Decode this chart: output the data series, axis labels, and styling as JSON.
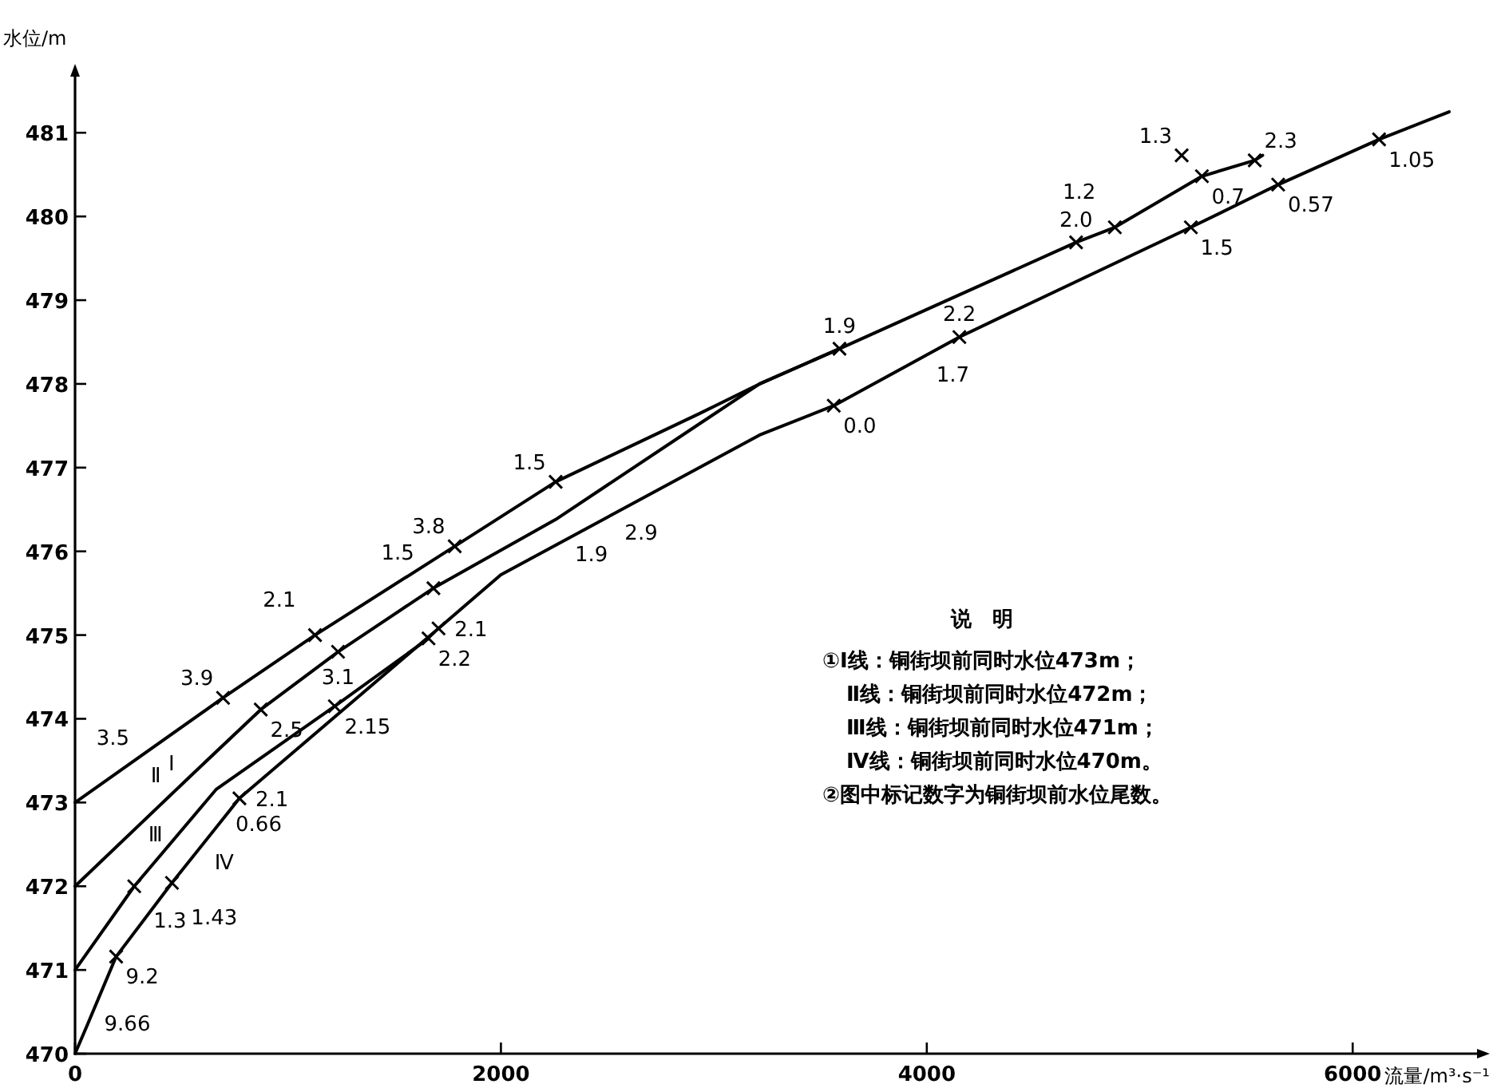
{
  "chart_data": {
    "type": "line",
    "xlabel": "流量/m³·s⁻¹",
    "ylabel": "水位/m",
    "xlim": [
      0,
      6584
    ],
    "ylim": [
      470,
      481.67
    ],
    "xticks": [
      0,
      2000,
      4000,
      6000
    ],
    "yticks": [
      470,
      471,
      472,
      473,
      474,
      475,
      476,
      477,
      478,
      479,
      480,
      481
    ],
    "grid": false,
    "series": [
      {
        "color": "#000000",
        "x": [
          0,
          695,
          1127,
          1783,
          2257,
          2936,
          3215,
          3590,
          4044,
          4701,
          4883,
          5292,
          5540,
          5577
        ],
        "values": [
          473.0,
          474.25,
          475.0,
          476.06,
          476.83,
          477.65,
          478.0,
          478.42,
          478.94,
          479.69,
          479.87,
          480.48,
          480.67,
          480.73
        ]
      },
      {
        "color": "#000000",
        "x": [
          0,
          548,
          872,
          1235,
          1683,
          2257,
          2936,
          3215,
          3590
        ],
        "values": [
          472.0,
          473.33,
          474.11,
          474.8,
          475.56,
          476.38,
          477.53,
          478.0,
          478.42
        ]
      },
      {
        "color": "#000000",
        "x": [
          0,
          278,
          664,
          1220,
          1660
        ],
        "values": [
          471.0,
          472.0,
          473.16,
          474.15,
          474.96
        ]
      },
      {
        "color": "#000000",
        "x": [
          0,
          62,
          193,
          455,
          772,
          1707,
          2000,
          3215,
          3563,
          4153,
          4409,
          5240,
          5650,
          6124,
          6453
        ],
        "values": [
          470.0,
          470.37,
          471.16,
          472.04,
          473.05,
          475.08,
          475.72,
          477.39,
          477.74,
          478.56,
          478.87,
          479.87,
          480.38,
          480.92,
          481.25
        ]
      },
      {
        "type": "scatter",
        "marker": "cross",
        "color": "#000000",
        "x": [
          695,
          1127,
          1783,
          2257,
          1660,
          4701,
          5197,
          5540,
          278,
          193,
          455,
          772,
          872,
          1235,
          1683,
          1220,
          1707,
          3590,
          3563,
          4153,
          4883,
          5292,
          5240,
          5650,
          6124
        ],
        "values": [
          474.25,
          475.0,
          476.06,
          476.83,
          474.96,
          479.69,
          480.73,
          480.67,
          472.0,
          471.16,
          472.04,
          473.05,
          474.11,
          474.8,
          475.56,
          474.15,
          475.08,
          478.42,
          477.74,
          478.56,
          479.87,
          480.48,
          479.87,
          480.38,
          480.92
        ]
      }
    ],
    "annotations": [
      {
        "text": "Ⅰ",
        "x": 394,
        "y": 473.71
      },
      {
        "text": "Ⅱ",
        "x": 448,
        "y": 473.09
      },
      {
        "text": "Ⅲ",
        "x": 486,
        "y": 472.63
      },
      {
        "text": "Ⅳ",
        "x": 610,
        "y": 472.53
      },
      {
        "text": "3.5",
        "x": 300,
        "y": 473.54
      },
      {
        "text": "9.66",
        "x": 62,
        "y": 470.37
      },
      {
        "text": "0.66",
        "x": 664,
        "y": 473.16
      },
      {
        "text": "1.9",
        "x": 2257,
        "y": 476.38
      },
      {
        "text": "2.9",
        "x": 2536,
        "y": 476.46
      },
      {
        "text": "1.7",
        "x": 4000,
        "y": 478.35
      },
      {
        "text": "3.9",
        "x": 695,
        "y": 474.25
      },
      {
        "text": "2.1",
        "x": 1127,
        "y": 475.0
      },
      {
        "text": "3.8",
        "x": 1783,
        "y": 476.06
      },
      {
        "text": "1.5",
        "x": 2257,
        "y": 476.83
      },
      {
        "text": "2.2",
        "x": 1660,
        "y": 474.96
      },
      {
        "text": "2.0",
        "x": 4701,
        "y": 479.69
      },
      {
        "text": "1.3",
        "x": 5197,
        "y": 480.73
      },
      {
        "text": "2.3",
        "x": 5540,
        "y": 480.67
      },
      {
        "text": "1.3",
        "x": 278,
        "y": 472.0
      },
      {
        "text": "9.2",
        "x": 193,
        "y": 471.16
      },
      {
        "text": "1.43",
        "x": 455,
        "y": 472.04
      },
      {
        "text": "2.1",
        "x": 772,
        "y": 473.05
      },
      {
        "text": "2.5",
        "x": 872,
        "y": 474.11
      },
      {
        "text": "3.1",
        "x": 1235,
        "y": 474.8
      },
      {
        "text": "1.5",
        "x": 1683,
        "y": 475.56
      },
      {
        "text": "2.15",
        "x": 1220,
        "y": 474.15
      },
      {
        "text": "2.1",
        "x": 1707,
        "y": 475.08
      },
      {
        "text": "1.9",
        "x": 3590,
        "y": 478.42
      },
      {
        "text": "0.0",
        "x": 3563,
        "y": 477.74
      },
      {
        "text": "2.2",
        "x": 4153,
        "y": 478.56
      },
      {
        "text": "1.2",
        "x": 4883,
        "y": 479.87
      },
      {
        "text": "0.7",
        "x": 5292,
        "y": 480.48
      },
      {
        "text": "1.5",
        "x": 5240,
        "y": 479.87
      },
      {
        "text": "0.57",
        "x": 5650,
        "y": 480.38
      },
      {
        "text": "1.05",
        "x": 6124,
        "y": 480.92
      },
      "说　明",
      "①Ⅰ线：铜街坝前同时水位473m；",
      "Ⅱ线：铜街坝前同时水位472m；",
      "Ⅲ线：铜街坝前同时水位471m；",
      "Ⅳ线：铜街坝前同时水位470m。",
      "②图中标记数字为铜街坝前水位尾数。"
    ]
  }
}
